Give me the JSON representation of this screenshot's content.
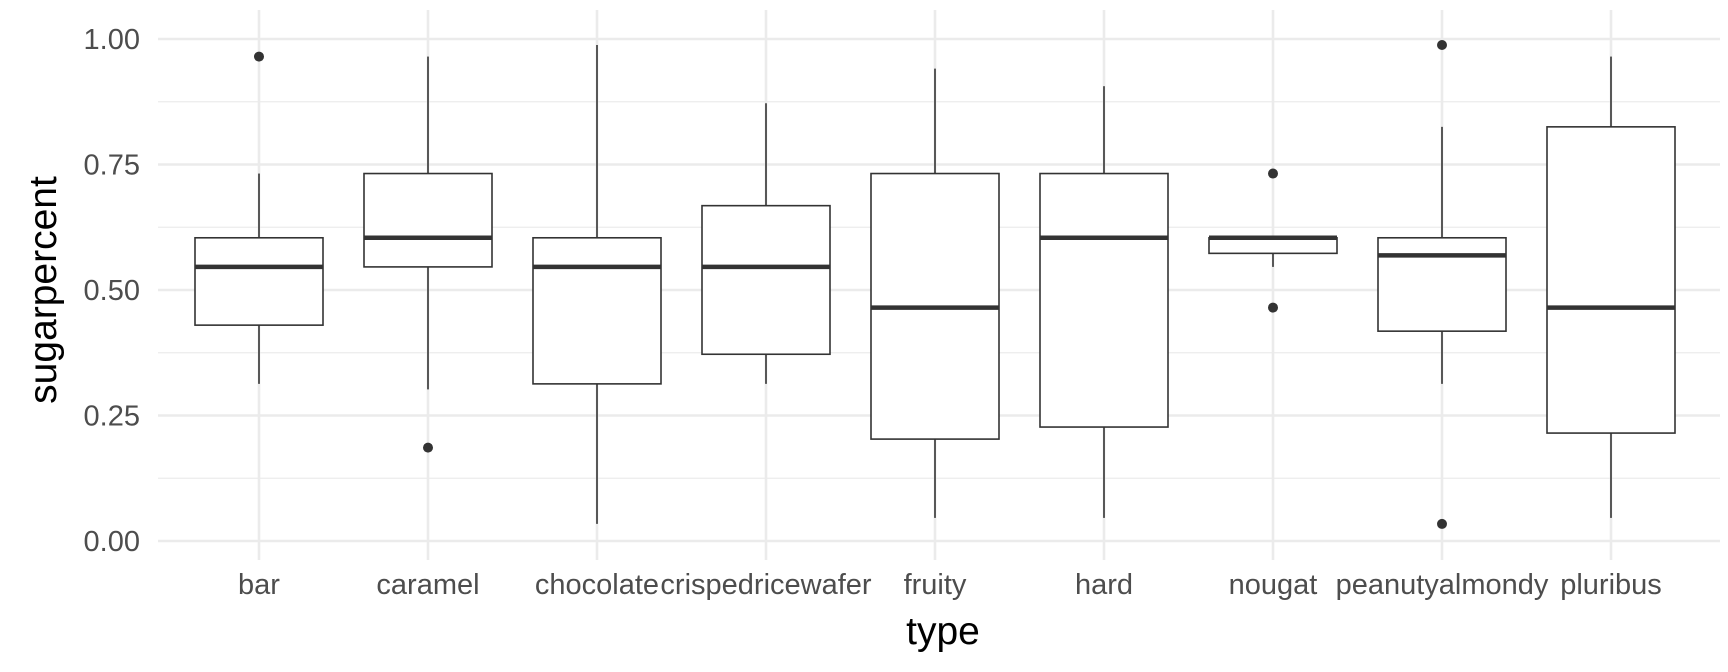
{
  "chart_data": {
    "type": "boxplot",
    "xlabel": "type",
    "ylabel": "sugarpercent",
    "ylim": [
      0,
      1.0
    ],
    "y_ticks": [
      "0.00",
      "0.25",
      "0.50",
      "0.75",
      "1.00"
    ],
    "y_tick_values": [
      0,
      0.25,
      0.5,
      0.75,
      1.0
    ],
    "grid": true,
    "categories": [
      "bar",
      "caramel",
      "chocolate",
      "crispedricewafer",
      "fruity",
      "hard",
      "nougat",
      "peanutyalmondy",
      "pluribus"
    ],
    "boxes": [
      {
        "category": "bar",
        "whisker_low": 0.313,
        "q1": 0.43,
        "median": 0.546,
        "q3": 0.604,
        "whisker_high": 0.732,
        "outliers": [
          0.965
        ]
      },
      {
        "category": "caramel",
        "whisker_low": 0.302,
        "q1": 0.546,
        "median": 0.604,
        "q3": 0.732,
        "whisker_high": 0.965,
        "outliers": [
          0.186
        ]
      },
      {
        "category": "chocolate",
        "whisker_low": 0.034,
        "q1": 0.313,
        "median": 0.546,
        "q3": 0.604,
        "whisker_high": 0.988,
        "outliers": []
      },
      {
        "category": "crispedricewafer",
        "whisker_low": 0.313,
        "q1": 0.372,
        "median": 0.546,
        "q3": 0.668,
        "whisker_high": 0.872,
        "outliers": []
      },
      {
        "category": "fruity",
        "whisker_low": 0.046,
        "q1": 0.203,
        "median": 0.465,
        "q3": 0.732,
        "whisker_high": 0.941,
        "outliers": []
      },
      {
        "category": "hard",
        "whisker_low": 0.046,
        "q1": 0.227,
        "median": 0.604,
        "q3": 0.732,
        "whisker_high": 0.906,
        "outliers": []
      },
      {
        "category": "nougat",
        "whisker_low": 0.546,
        "q1": 0.573,
        "median": 0.604,
        "q3": 0.604,
        "whisker_high": 0.604,
        "outliers": [
          0.732,
          0.465
        ]
      },
      {
        "category": "peanutyalmondy",
        "whisker_low": 0.313,
        "q1": 0.418,
        "median": 0.569,
        "q3": 0.604,
        "whisker_high": 0.825,
        "outliers": [
          0.988,
          0.034
        ]
      },
      {
        "category": "pluribus",
        "whisker_low": 0.046,
        "q1": 0.215,
        "median": 0.465,
        "q3": 0.825,
        "whisker_high": 0.965,
        "outliers": []
      }
    ]
  }
}
